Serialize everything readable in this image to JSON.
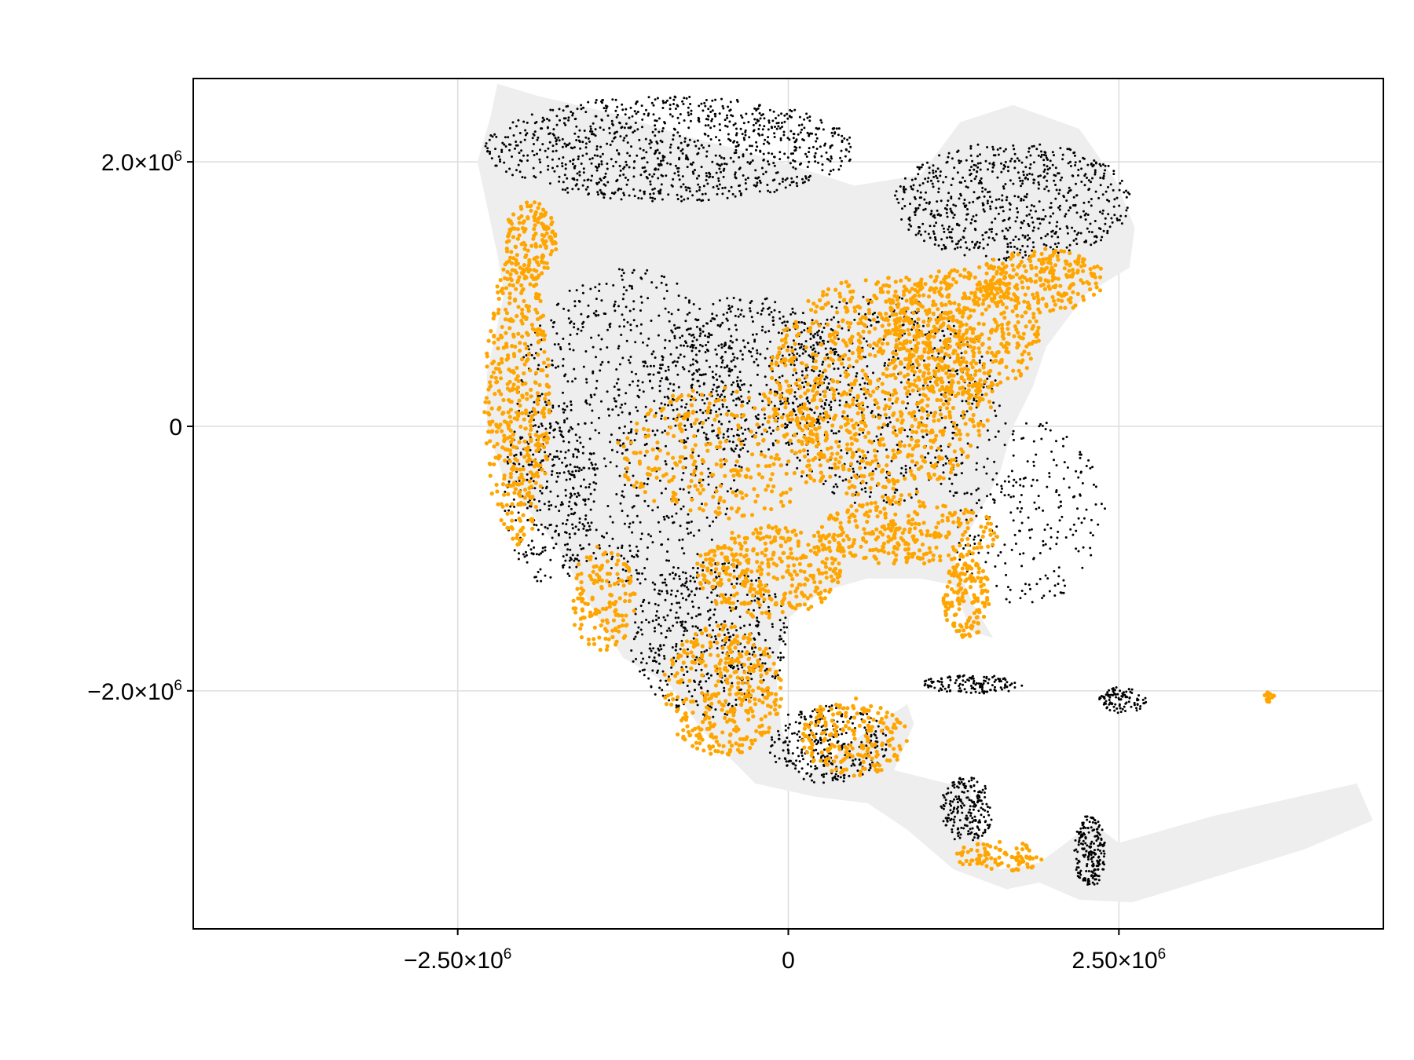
{
  "chart_data": {
    "type": "scatter",
    "title": "",
    "xlabel": "",
    "ylabel": "",
    "xlim": [
      -4500000,
      4500000
    ],
    "ylim": [
      -3800000,
      2630000
    ],
    "grid": true,
    "legend": "none",
    "x_ticks": [
      {
        "value": -2500000,
        "mantissa": "−2.50×10",
        "exp": "6"
      },
      {
        "value": 0,
        "mantissa": "0",
        "exp": ""
      },
      {
        "value": 2500000,
        "mantissa": "2.50×10",
        "exp": "6"
      }
    ],
    "y_ticks": [
      {
        "value": 2000000,
        "mantissa": "2.0×10",
        "exp": "6"
      },
      {
        "value": 0,
        "mantissa": "0",
        "exp": ""
      },
      {
        "value": -2000000,
        "mantissa": "−2.0×10",
        "exp": "6"
      }
    ],
    "background_land_color": "#eeeeee",
    "series": [
      {
        "color": "#000000",
        "marker_size": "small",
        "density": "dense in north (Canada/Alaska), interior west, Mexico, Central America, Cuba/Hispaniola"
      },
      {
        "color": "#ffa500",
        "marker_size": "medium",
        "density": "dense in eastern US, Pacific coast, Florida, Gulf coast, Mexico coasts, Central America"
      }
    ],
    "land_outline": [
      [
        -2200000,
        2590000
      ],
      [
        -1900000,
        2500000
      ],
      [
        -1300000,
        2360000
      ],
      [
        -800000,
        2200000
      ],
      [
        -400000,
        2100000
      ],
      [
        100000,
        1950000
      ],
      [
        500000,
        1820000
      ],
      [
        1000000,
        1900000
      ],
      [
        1300000,
        2300000
      ],
      [
        1700000,
        2430000
      ],
      [
        2200000,
        2250000
      ],
      [
        2480000,
        1850000
      ],
      [
        2620000,
        1500000
      ],
      [
        2580000,
        1200000
      ],
      [
        2250000,
        1000000
      ],
      [
        1950000,
        600000
      ],
      [
        1850000,
        300000
      ],
      [
        1700000,
        0
      ],
      [
        1600000,
        -350000
      ],
      [
        1420000,
        -700000
      ],
      [
        1250000,
        -1000000
      ],
      [
        1400000,
        -1350000
      ],
      [
        1550000,
        -1600000
      ],
      [
        1380000,
        -1550000
      ],
      [
        1250000,
        -1200000
      ],
      [
        1000000,
        -1150000
      ],
      [
        600000,
        -1150000
      ],
      [
        250000,
        -1250000
      ],
      [
        0,
        -1450000
      ],
      [
        -100000,
        -1800000
      ],
      [
        -50000,
        -2300000
      ],
      [
        100000,
        -2650000
      ],
      [
        400000,
        -2450000
      ],
      [
        600000,
        -2300000
      ],
      [
        900000,
        -2100000
      ],
      [
        950000,
        -2250000
      ],
      [
        800000,
        -2600000
      ],
      [
        1200000,
        -2700000
      ],
      [
        1380000,
        -2700000
      ],
      [
        1380000,
        -3000000
      ],
      [
        1600000,
        -3350000
      ],
      [
        1900000,
        -3300000
      ],
      [
        2300000,
        -3000000
      ],
      [
        2500000,
        -3150000
      ],
      [
        3200000,
        -2950000
      ],
      [
        4300000,
        -2700000
      ],
      [
        4420000,
        -2980000
      ],
      [
        3900000,
        -3200000
      ],
      [
        2600000,
        -3600000
      ],
      [
        2200000,
        -3580000
      ],
      [
        1900000,
        -3450000
      ],
      [
        1650000,
        -3500000
      ],
      [
        1250000,
        -3350000
      ],
      [
        900000,
        -3050000
      ],
      [
        600000,
        -2850000
      ],
      [
        200000,
        -2800000
      ],
      [
        -250000,
        -2700000
      ],
      [
        -650000,
        -2300000
      ],
      [
        -900000,
        -1950000
      ],
      [
        -1250000,
        -1750000
      ],
      [
        -1500000,
        -1350000
      ],
      [
        -1750000,
        -900000
      ],
      [
        -2150000,
        -400000
      ],
      [
        -2280000,
        0
      ],
      [
        -2280000,
        400000
      ],
      [
        -2150000,
        1000000
      ],
      [
        -2200000,
        1300000
      ],
      [
        -2350000,
        2000000
      ],
      [
        -2250000,
        2350000
      ]
    ]
  }
}
